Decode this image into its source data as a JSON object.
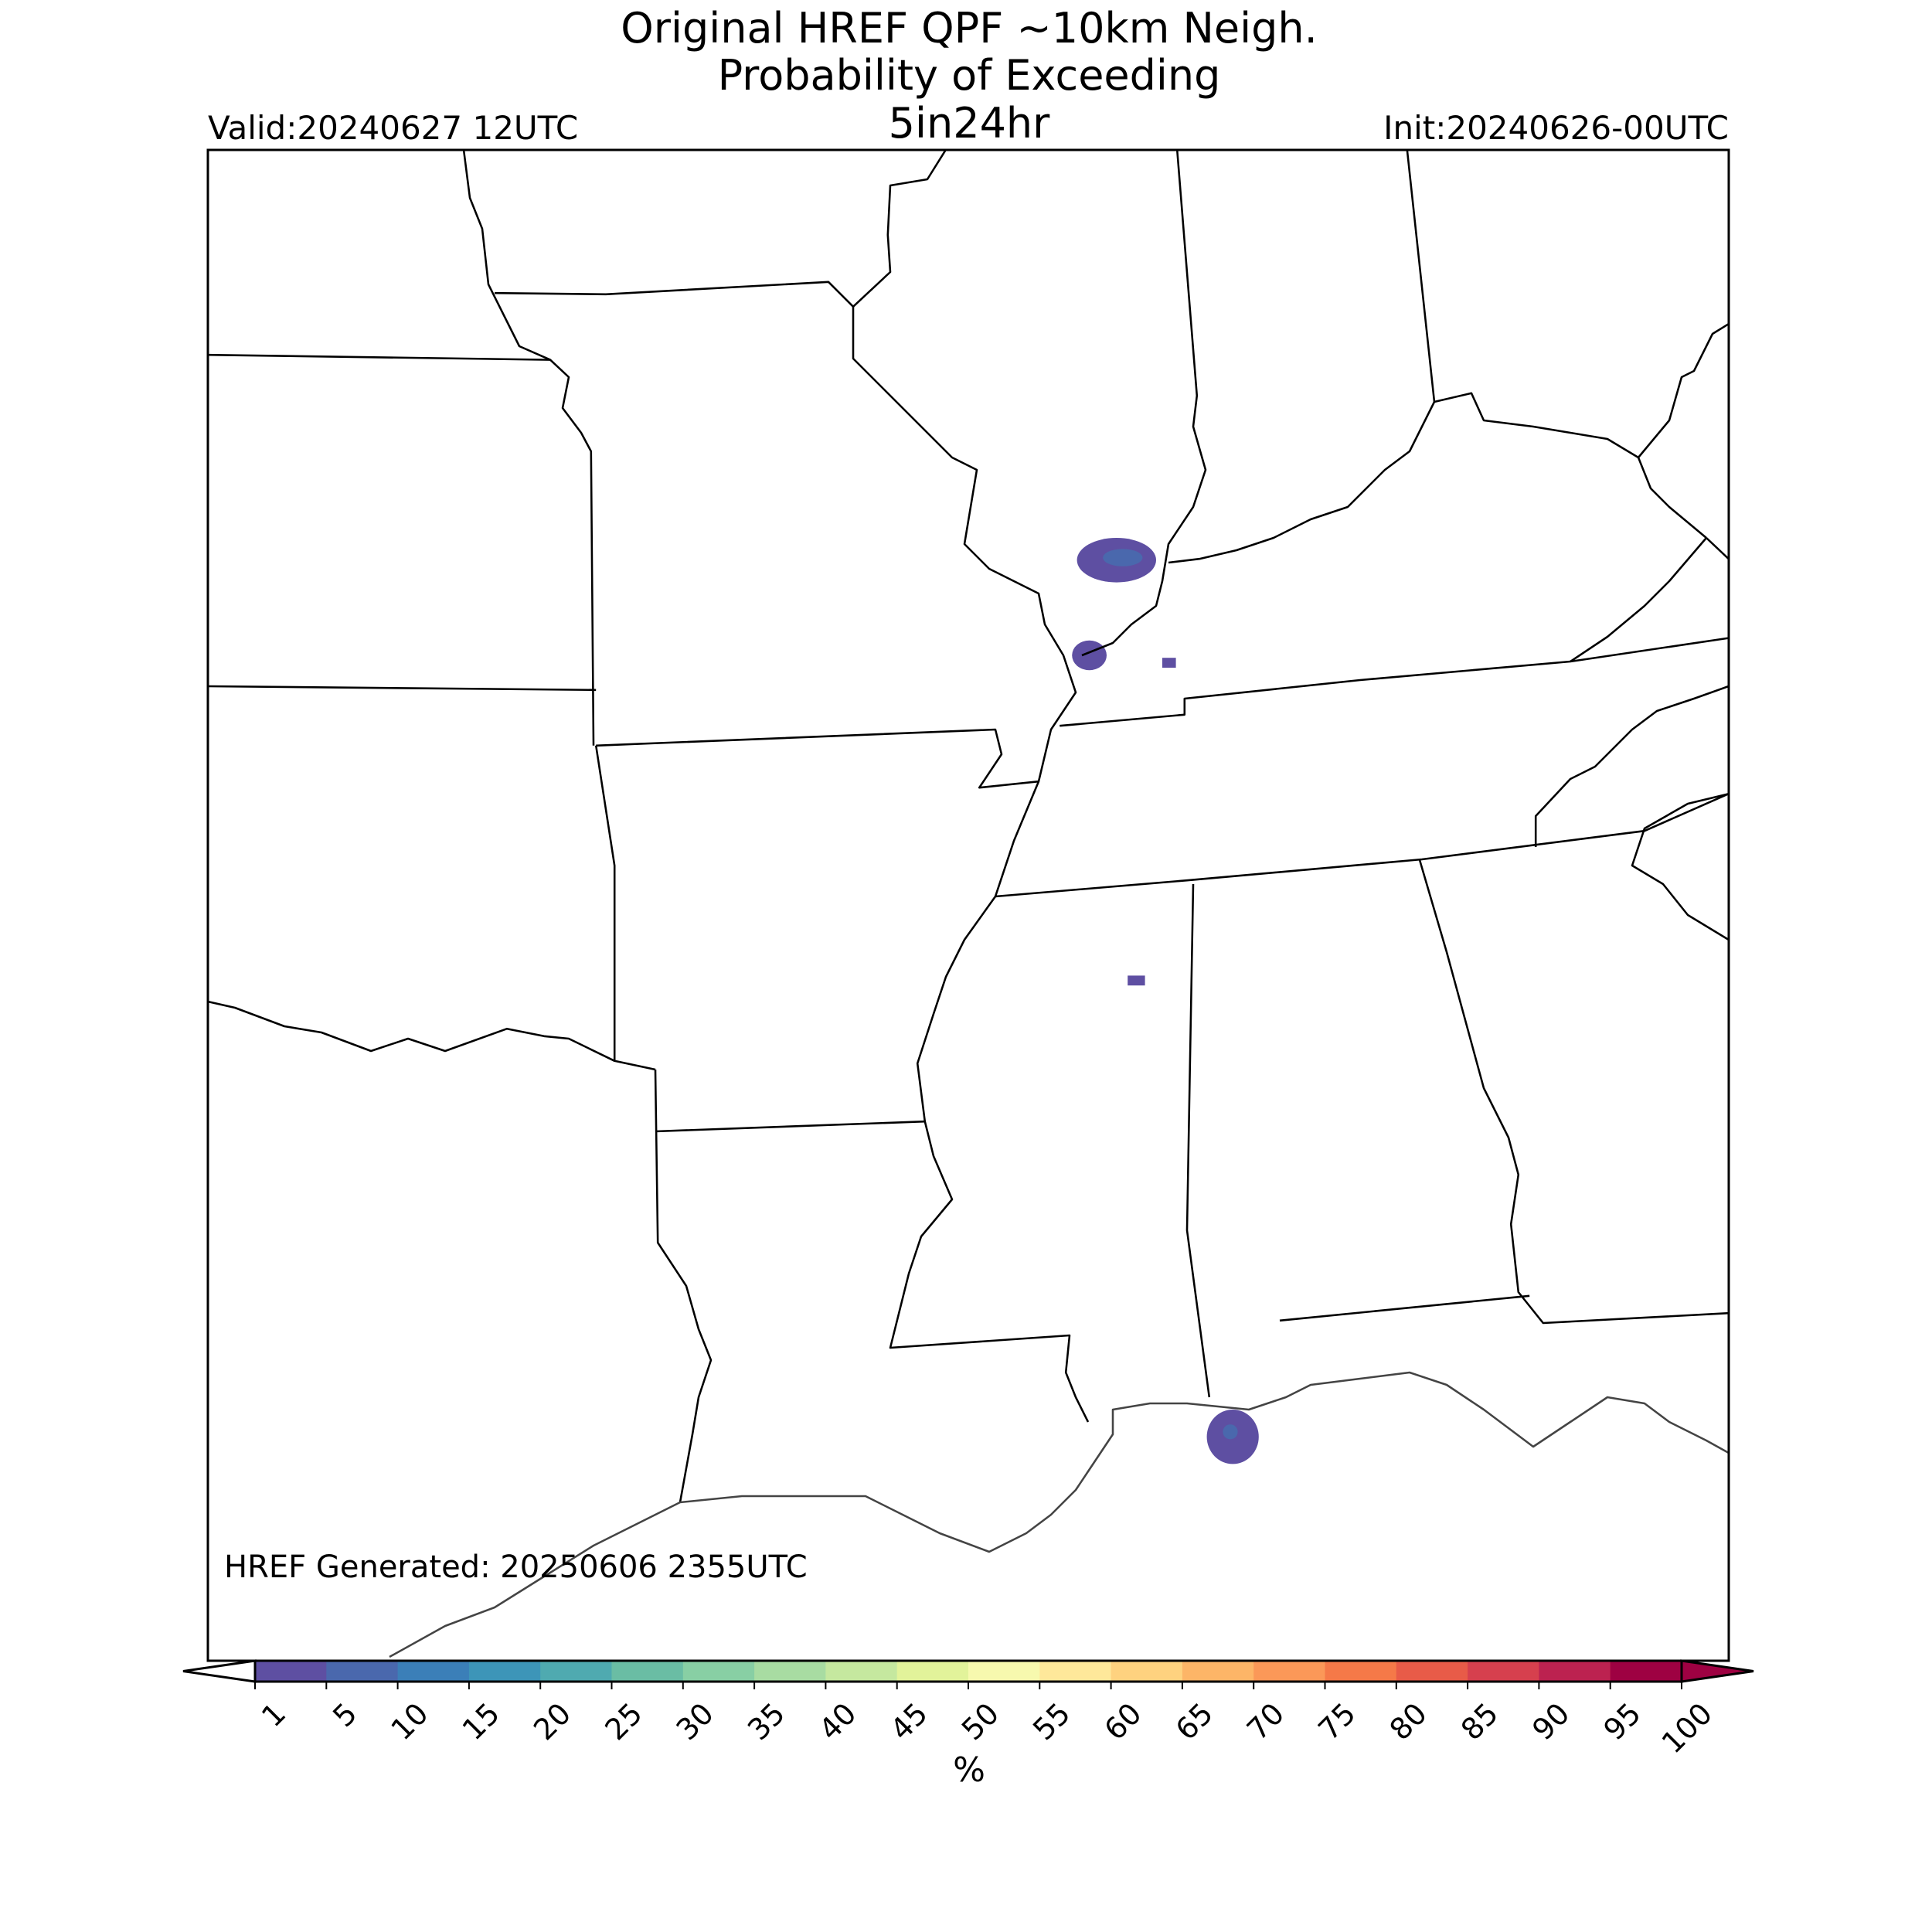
{
  "header": {
    "title_lines": [
      "Original HREF QPF ~10km Neigh.",
      "Probability of Exceeding",
      "5in24hr"
    ],
    "valid": "Valid:20240627 12UTC",
    "init": "Init:20240626-00UTC"
  },
  "map": {
    "generated": "HREF Generated: 20250606 2355UTC"
  },
  "colorbar": {
    "ticks": [
      1,
      5,
      10,
      15,
      20,
      25,
      30,
      35,
      40,
      45,
      50,
      55,
      60,
      65,
      70,
      75,
      80,
      85,
      90,
      95,
      100
    ],
    "colors": [
      "#5e4fa2",
      "#4a68ad",
      "#3b7fb8",
      "#3d95b8",
      "#4faab0",
      "#6abda4",
      "#88cfa4",
      "#a8dca2",
      "#c5e89f",
      "#e2f39a",
      "#f7f9ae",
      "#fee89a",
      "#fed27f",
      "#fdb567",
      "#fb9858",
      "#f57948",
      "#e85b48",
      "#d6404e",
      "#bc2250",
      "#9e0142"
    ],
    "under_color": "#ffffff",
    "over_color": "#9e0142",
    "label": "%"
  }
}
